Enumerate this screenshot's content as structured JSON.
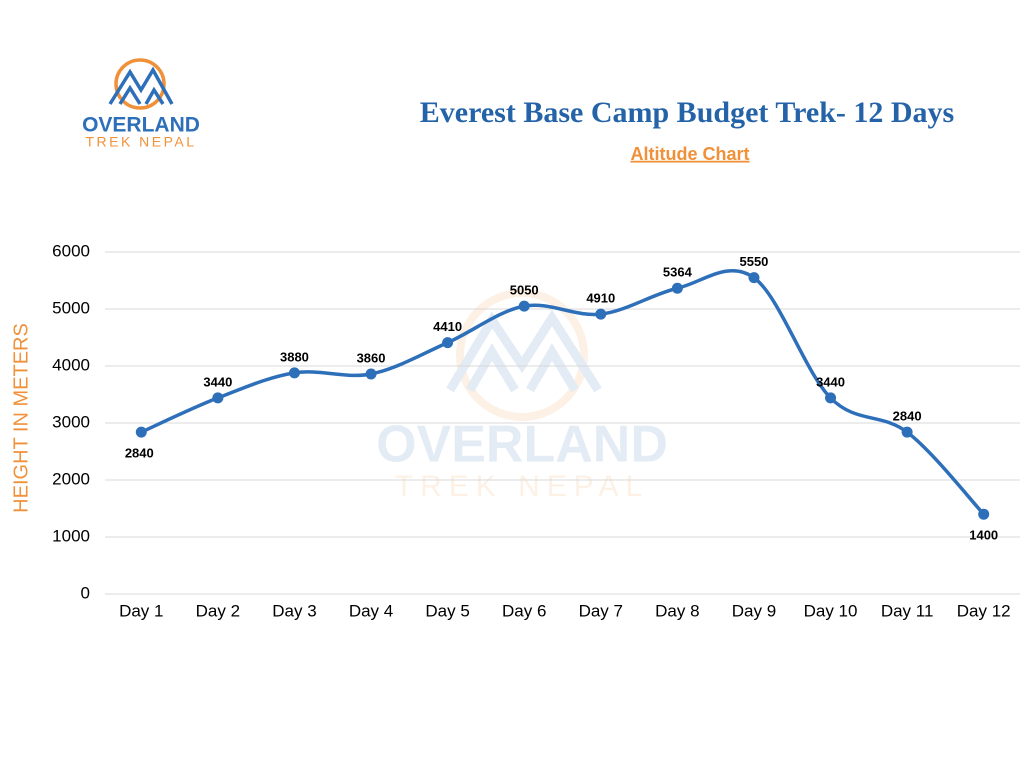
{
  "logo": {
    "name": "OVERLAND",
    "tagline": "TREK NEPAL"
  },
  "chart_data": {
    "type": "line",
    "title": "Everest Base Camp Budget Trek- 12 Days",
    "subtitle": "Altitude Chart",
    "y_label": "HEIGHT IN METERS",
    "categories": [
      "Day 1",
      "Day 2",
      "Day 3",
      "Day 4",
      "Day 5",
      "Day 6",
      "Day 7",
      "Day 8",
      "Day 9",
      "Day 10",
      "Day 11",
      "Day 12"
    ],
    "values": [
      2840,
      3440,
      3880,
      3860,
      4410,
      5050,
      4910,
      5364,
      5550,
      3440,
      2840,
      1400
    ],
    "color": "#2e6fba",
    "ylim": [
      0,
      6000
    ],
    "yticks": [
      0,
      1000,
      2000,
      3000,
      4000,
      5000,
      6000
    ],
    "grid": true
  }
}
